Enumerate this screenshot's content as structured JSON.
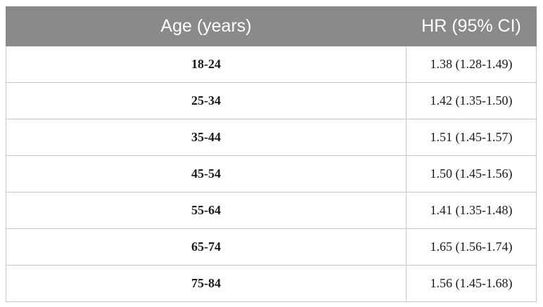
{
  "table": {
    "headers": [
      "Age (years)",
      "HR (95% CI)"
    ],
    "rows": [
      {
        "age": "18-24",
        "hr": "1.38 (1.28-1.49)"
      },
      {
        "age": "25-34",
        "hr": "1.42 (1.35-1.50)"
      },
      {
        "age": "35-44",
        "hr": "1.51 (1.45-1.57)"
      },
      {
        "age": "45-54",
        "hr": "1.50 (1.45-1.56)"
      },
      {
        "age": "55-64",
        "hr": "1.41 (1.35-1.48)"
      },
      {
        "age": "65-74",
        "hr": "1.65 (1.56-1.74)"
      },
      {
        "age": "75-84",
        "hr": "1.56 (1.45-1.68)"
      }
    ]
  }
}
